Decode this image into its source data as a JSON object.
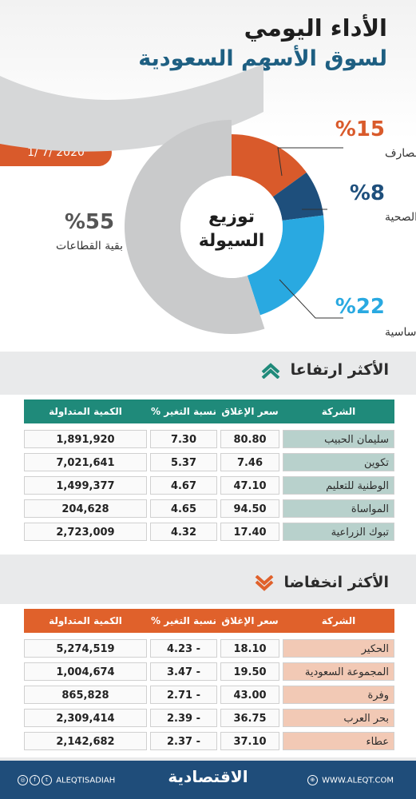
{
  "header": {
    "title_line1": "الأداء اليومي",
    "title_line2": "لسوق الأسهم السعودية",
    "date": "1/ 7/ 2020"
  },
  "chart_data": {
    "type": "pie",
    "title": "توزيع السيولة",
    "center_line1": "توزيع",
    "center_line2": "السيولة",
    "slices": [
      {
        "label": "المصارف",
        "value": 15,
        "display": "%15",
        "color": "#d95a2b"
      },
      {
        "label": "الرعاية الصحية",
        "value": 8,
        "display": "%8",
        "color": "#1e4f7c"
      },
      {
        "label": "المواد الأساسية",
        "value": 22,
        "display": "%22",
        "color": "#29a9e1"
      },
      {
        "label": "بقية القطاعات",
        "value": 55,
        "display": "%55",
        "color": "#c9cacb"
      }
    ]
  },
  "gainers": {
    "title": "الأكثر ارتفاعا",
    "header_color": "#1f8a7a",
    "name_cell_color": "#b8d1cc",
    "columns": [
      "الشركة",
      "سعر الإغلاق",
      "نسبة التغير %",
      "الكمية المتداولة"
    ],
    "rows": [
      {
        "company": "سليمان الحبيب",
        "close": "80.80",
        "change": "7.30",
        "volume": "1,891,920"
      },
      {
        "company": "تكوين",
        "close": "7.46",
        "change": "5.37",
        "volume": "7,021,641"
      },
      {
        "company": "الوطنية للتعليم",
        "close": "47.10",
        "change": "4.67",
        "volume": "1,499,377"
      },
      {
        "company": "المواساة",
        "close": "94.50",
        "change": "4.65",
        "volume": "204,628"
      },
      {
        "company": "تبوك الزراعية",
        "close": "17.40",
        "change": "4.32",
        "volume": "2,723,009"
      }
    ]
  },
  "losers": {
    "title": "الأكثر انخفاضا",
    "header_color": "#e0612b",
    "name_cell_color": "#f2c9b5",
    "columns": [
      "الشركة",
      "سعر الإغلاق",
      "نسبة التغير %",
      "الكمية المتداولة"
    ],
    "rows": [
      {
        "company": "الحكير",
        "close": "18.10",
        "change": "4.23 -",
        "volume": "5,274,519"
      },
      {
        "company": "المجموعة السعودية",
        "close": "19.50",
        "change": "3.47 -",
        "volume": "1,004,674"
      },
      {
        "company": "وفرة",
        "close": "43.00",
        "change": "2.71 -",
        "volume": "865,828"
      },
      {
        "company": "بحر العرب",
        "close": "36.75",
        "change": "2.39 -",
        "volume": "2,309,414"
      },
      {
        "company": "عطاء",
        "close": "37.10",
        "change": "2.37 -",
        "volume": "2,142,682"
      }
    ]
  },
  "footer": {
    "logo": "الاقتصادية",
    "website": "WWW.ALEQT.COM",
    "social": "ALEQTISADIAH"
  }
}
